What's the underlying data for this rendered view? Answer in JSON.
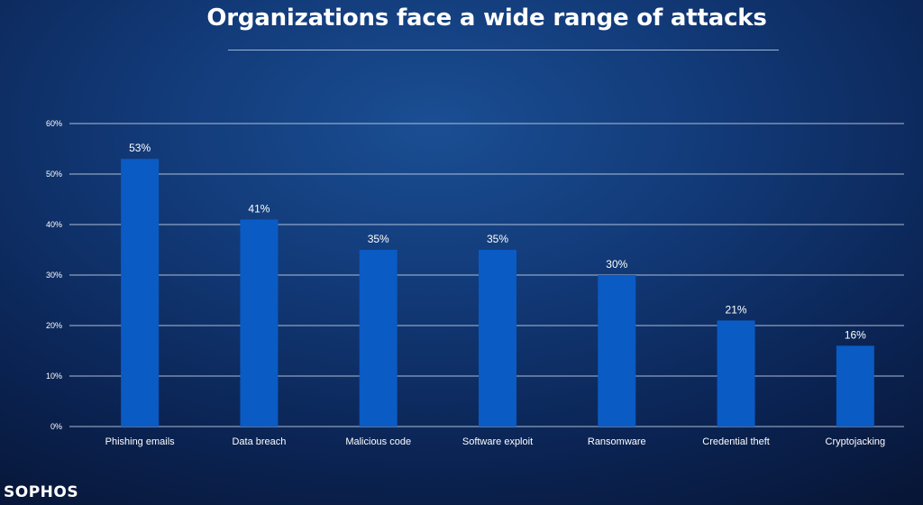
{
  "title": "Organizations face a wide range of attacks",
  "logo": "SOPHOS",
  "colors": {
    "bar": "#0a5bc4",
    "gridline": "#c9d6ea",
    "text": "#ffffff"
  },
  "chart_data": {
    "type": "bar",
    "title": "Organizations face a wide range of attacks",
    "xlabel": "",
    "ylabel": "",
    "categories": [
      "Phishing emails",
      "Data breach",
      "Malicious code",
      "Software exploit",
      "Ransomware",
      "Credential theft",
      "Cryptojacking"
    ],
    "values": [
      53,
      41,
      35,
      35,
      30,
      21,
      16
    ],
    "data_labels": [
      "53%",
      "41%",
      "35%",
      "35%",
      "30%",
      "21%",
      "16%"
    ],
    "ylim": [
      0,
      60
    ],
    "yticks": [
      "0%",
      "10%",
      "20%",
      "30%",
      "40%",
      "50%",
      "60%"
    ],
    "grid": true,
    "legend": "none"
  }
}
